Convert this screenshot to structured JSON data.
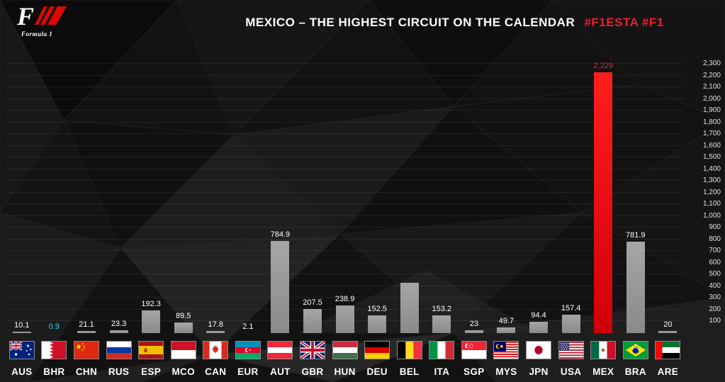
{
  "header": {
    "title": "MEXICO – THE HIGHEST CIRCUIT ON THE CALENDAR",
    "hashtags": "#F1ESTA #F1",
    "accent_color": "#e8212b"
  },
  "logo": {
    "f_letter": "F",
    "tagline": "Formula 1"
  },
  "chart_data": {
    "type": "bar",
    "title": "Mexico – the highest circuit on the calendar",
    "categories": [
      "AUS",
      "BHR",
      "CHN",
      "RUS",
      "ESP",
      "MCO",
      "CAN",
      "EUR",
      "AUT",
      "GBR",
      "HUN",
      "DEU",
      "BEL",
      "ITA",
      "SGP",
      "MYS",
      "JPN",
      "USA",
      "MEX",
      "BRA",
      "ARE"
    ],
    "values": [
      10.1,
      0.9,
      21.1,
      23.3,
      192.3,
      89.5,
      17.8,
      2.1,
      784.9,
      207.5,
      238.9,
      152.5,
      430,
      153.2,
      23,
      49.7,
      94.4,
      157.4,
      2229,
      781.9,
      20
    ],
    "value_labels": [
      "10.1",
      "0.9",
      "21.1",
      "23.3",
      "192.3",
      "89.5",
      "17.8",
      "2.1",
      "784.9",
      "207.5",
      "238.9",
      "152.5",
      "",
      "153.2",
      "23",
      "49.7",
      "94.4",
      "157.4",
      "2,229",
      "781.9",
      "20"
    ],
    "label_colors": {
      "default": "#ffffff",
      "BHR": "#3ed3da",
      "MEX": "#ff2026"
    },
    "bar_colors": {
      "default": "linear-gradient(180deg,#a6a6a6,#8a8a8a)",
      "MEX": "linear-gradient(180deg,#ff1e1e,#cf0008)"
    },
    "highlight": "MEX",
    "ylim": [
      0,
      2300
    ],
    "ytick_step": 100,
    "yticks": [
      "2,300",
      "2,200",
      "2,100",
      "2,000",
      "1,900",
      "1,800",
      "1,700",
      "1,600",
      "1,500",
      "1,400",
      "1,300",
      "1,200",
      "1,100",
      "1,000",
      "900",
      "800",
      "700",
      "600",
      "500",
      "400",
      "300",
      "200",
      "100"
    ],
    "grid": true,
    "legend": "none"
  }
}
